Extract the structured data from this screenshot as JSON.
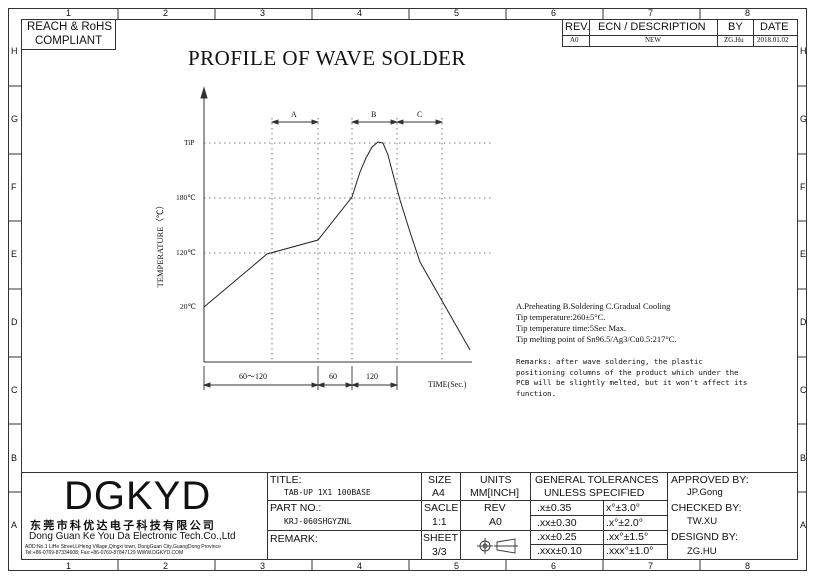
{
  "border": {
    "cols": [
      "1",
      "2",
      "3",
      "4",
      "5",
      "6",
      "7",
      "8"
    ],
    "rows": [
      "H",
      "G",
      "F",
      "E",
      "D",
      "C",
      "B",
      "A"
    ]
  },
  "compliance": {
    "line1": "REACH & RoHS",
    "line2": "COMPLIANT"
  },
  "revision": {
    "headers": {
      "rev": "REV.",
      "ecn": "ECN / DESCRIPTION",
      "by": "BY",
      "date": "DATE"
    },
    "row": {
      "rev": "A0",
      "ecn": "NEW",
      "by": "ZG.Hu",
      "date": "2018.01.02"
    }
  },
  "diagram": {
    "title": "PROFILE OF WAVE SOLDER",
    "ylabel": "TEMPERATURE（℃）",
    "xlabel": "TIME(Sec.)",
    "y_ticks": [
      "TiP",
      "180℃",
      "120℃",
      "20℃"
    ],
    "x_segments": [
      "60～120",
      "60",
      "120"
    ],
    "phases": [
      "A",
      "B",
      "C"
    ]
  },
  "notes": {
    "legend": "A.Preheating  B.Soldering  C.Gradual Cooling",
    "lines": [
      "Tip temperature:260±5°C.",
      "Tip temperature time:5Sec Max.",
      "Tip melting point of Sn96.5/Ag3/Cu0.5:217°C."
    ],
    "remarks": [
      "Remarks: after wave soldering, the plastic",
      "positioning columns of the product  which under the",
      "PCB will be slightly melted, but it won't affect its",
      "function."
    ]
  },
  "title_block": {
    "logo": "DGKYD",
    "company_cn": "东莞市科优达电子科技有限公司",
    "company_en": "Dong Guan Ke You Da Electronic Tech.Co.,Ltd",
    "address": "ADD:No.1 LiHe Street,LiHeng Village,Qingxi town, DongGuan City,GuangDong Province",
    "tel": "Tel:+86-0769-87334608; Fax:+86-0769-87847129  WWW.DGKYD.COM",
    "title_label": "TITLE:",
    "title_value": "TAB-UP 1X1 100BASE",
    "part_label": "PART NO.:",
    "part_value": "KRJ-060SHGYZNL",
    "remark_label": "REMARK:",
    "size_label": "SIZE",
    "size_value": "A4",
    "units_label": "UNITS",
    "units_value": "MM[INCH]",
    "scale_label": "SACLE",
    "scale_value": "1:1",
    "rev_label": "REV",
    "rev_value": "A0",
    "sheet_label": "SHEET",
    "sheet_value": "3/3",
    "tolerances_title1": "GENERAL TOLERANCES",
    "tolerances_title2": "UNLESS SPECIFIED",
    "tolerances": [
      {
        "linear": ".x±0.35",
        "angular": "x°±3.0°"
      },
      {
        "linear": ".xx±0.30",
        "angular": ".x°±2.0°"
      },
      {
        "linear": ".xx±0.25",
        "angular": ".xx°±1.5°"
      },
      {
        "linear": ".xxx±0.10",
        "angular": ".xxx°±1.0°"
      }
    ],
    "approved_label": "APPROVED BY:",
    "approved_value": "JP.Gong",
    "checked_label": "CHECKED BY:",
    "checked_value": "TW.XU",
    "designed_label": "DESIGND BY:",
    "designed_value": "ZG.HU"
  }
}
